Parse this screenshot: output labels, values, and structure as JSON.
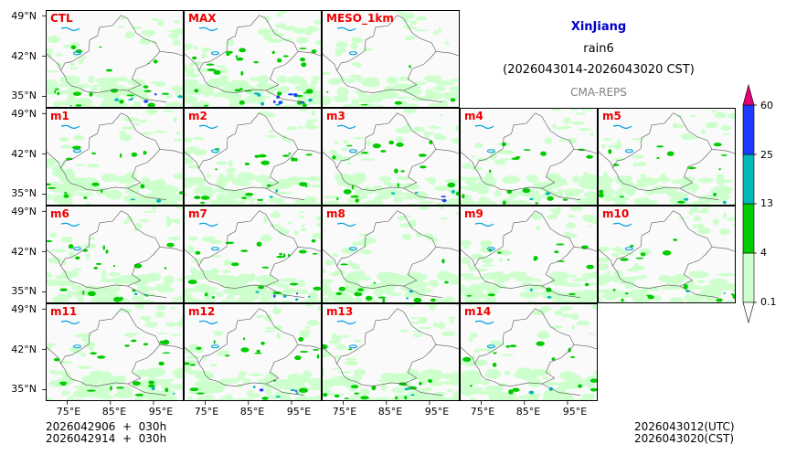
{
  "header": {
    "region": "XinJiang",
    "variable": "rain6",
    "period": "(2026043014-2026043020 CST)",
    "model": "CMA-REPS"
  },
  "panels": [
    {
      "label": "CTL",
      "row": 0,
      "col": 0,
      "rain": [
        8,
        4,
        2,
        1
      ]
    },
    {
      "label": "MAX",
      "row": 0,
      "col": 1,
      "rain": [
        10,
        6,
        3,
        3
      ]
    },
    {
      "label": "MESO_1km",
      "row": 0,
      "col": 2,
      "rain": [
        7,
        1,
        0,
        0
      ]
    },
    {
      "label": "m1",
      "row": 1,
      "col": 0,
      "rain": [
        8,
        3,
        1,
        0
      ]
    },
    {
      "label": "m2",
      "row": 1,
      "col": 1,
      "rain": [
        8,
        4,
        1,
        0
      ]
    },
    {
      "label": "m3",
      "row": 1,
      "col": 2,
      "rain": [
        8,
        4,
        2,
        1
      ]
    },
    {
      "label": "m4",
      "row": 1,
      "col": 3,
      "rain": [
        8,
        3,
        1,
        0
      ]
    },
    {
      "label": "m5",
      "row": 1,
      "col": 4,
      "rain": [
        8,
        3,
        1,
        0
      ]
    },
    {
      "label": "m6",
      "row": 2,
      "col": 0,
      "rain": [
        8,
        4,
        1,
        0
      ]
    },
    {
      "label": "m7",
      "row": 2,
      "col": 1,
      "rain": [
        8,
        4,
        2,
        1
      ]
    },
    {
      "label": "m8",
      "row": 2,
      "col": 2,
      "rain": [
        8,
        3,
        1,
        0
      ]
    },
    {
      "label": "m9",
      "row": 2,
      "col": 3,
      "rain": [
        8,
        3,
        1,
        0
      ]
    },
    {
      "label": "m10",
      "row": 2,
      "col": 4,
      "rain": [
        8,
        3,
        1,
        0
      ]
    },
    {
      "label": "m11",
      "row": 3,
      "col": 0,
      "rain": [
        8,
        4,
        1,
        0
      ]
    },
    {
      "label": "m12",
      "row": 3,
      "col": 1,
      "rain": [
        8,
        4,
        2,
        1
      ]
    },
    {
      "label": "m13",
      "row": 3,
      "col": 2,
      "rain": [
        8,
        3,
        1,
        0
      ]
    },
    {
      "label": "m14",
      "row": 3,
      "col": 3,
      "rain": [
        8,
        3,
        1,
        0
      ]
    }
  ],
  "axes": {
    "lat_ticks": [
      "49°N",
      "42°N",
      "35°N"
    ],
    "lon_ticks": [
      "75°E",
      "85°E",
      "95°E"
    ]
  },
  "colorbar": {
    "levels": [
      "0.1",
      "4",
      "13",
      "25",
      "60"
    ],
    "colors": [
      "#ccffcc",
      "#00cc00",
      "#00b8b8",
      "#1e3cff",
      "#e60073"
    ]
  },
  "footer": {
    "init_utc": "2026042906  +  030h",
    "init_cst": "2026042914  +  030h",
    "valid_utc": "2026043012(UTC)",
    "valid_cst": "2026043020(CST)"
  },
  "colors": {
    "panel_label": "#ee0000",
    "title": "#0000cc",
    "lake": "#00a0e0",
    "border": "#555555"
  }
}
